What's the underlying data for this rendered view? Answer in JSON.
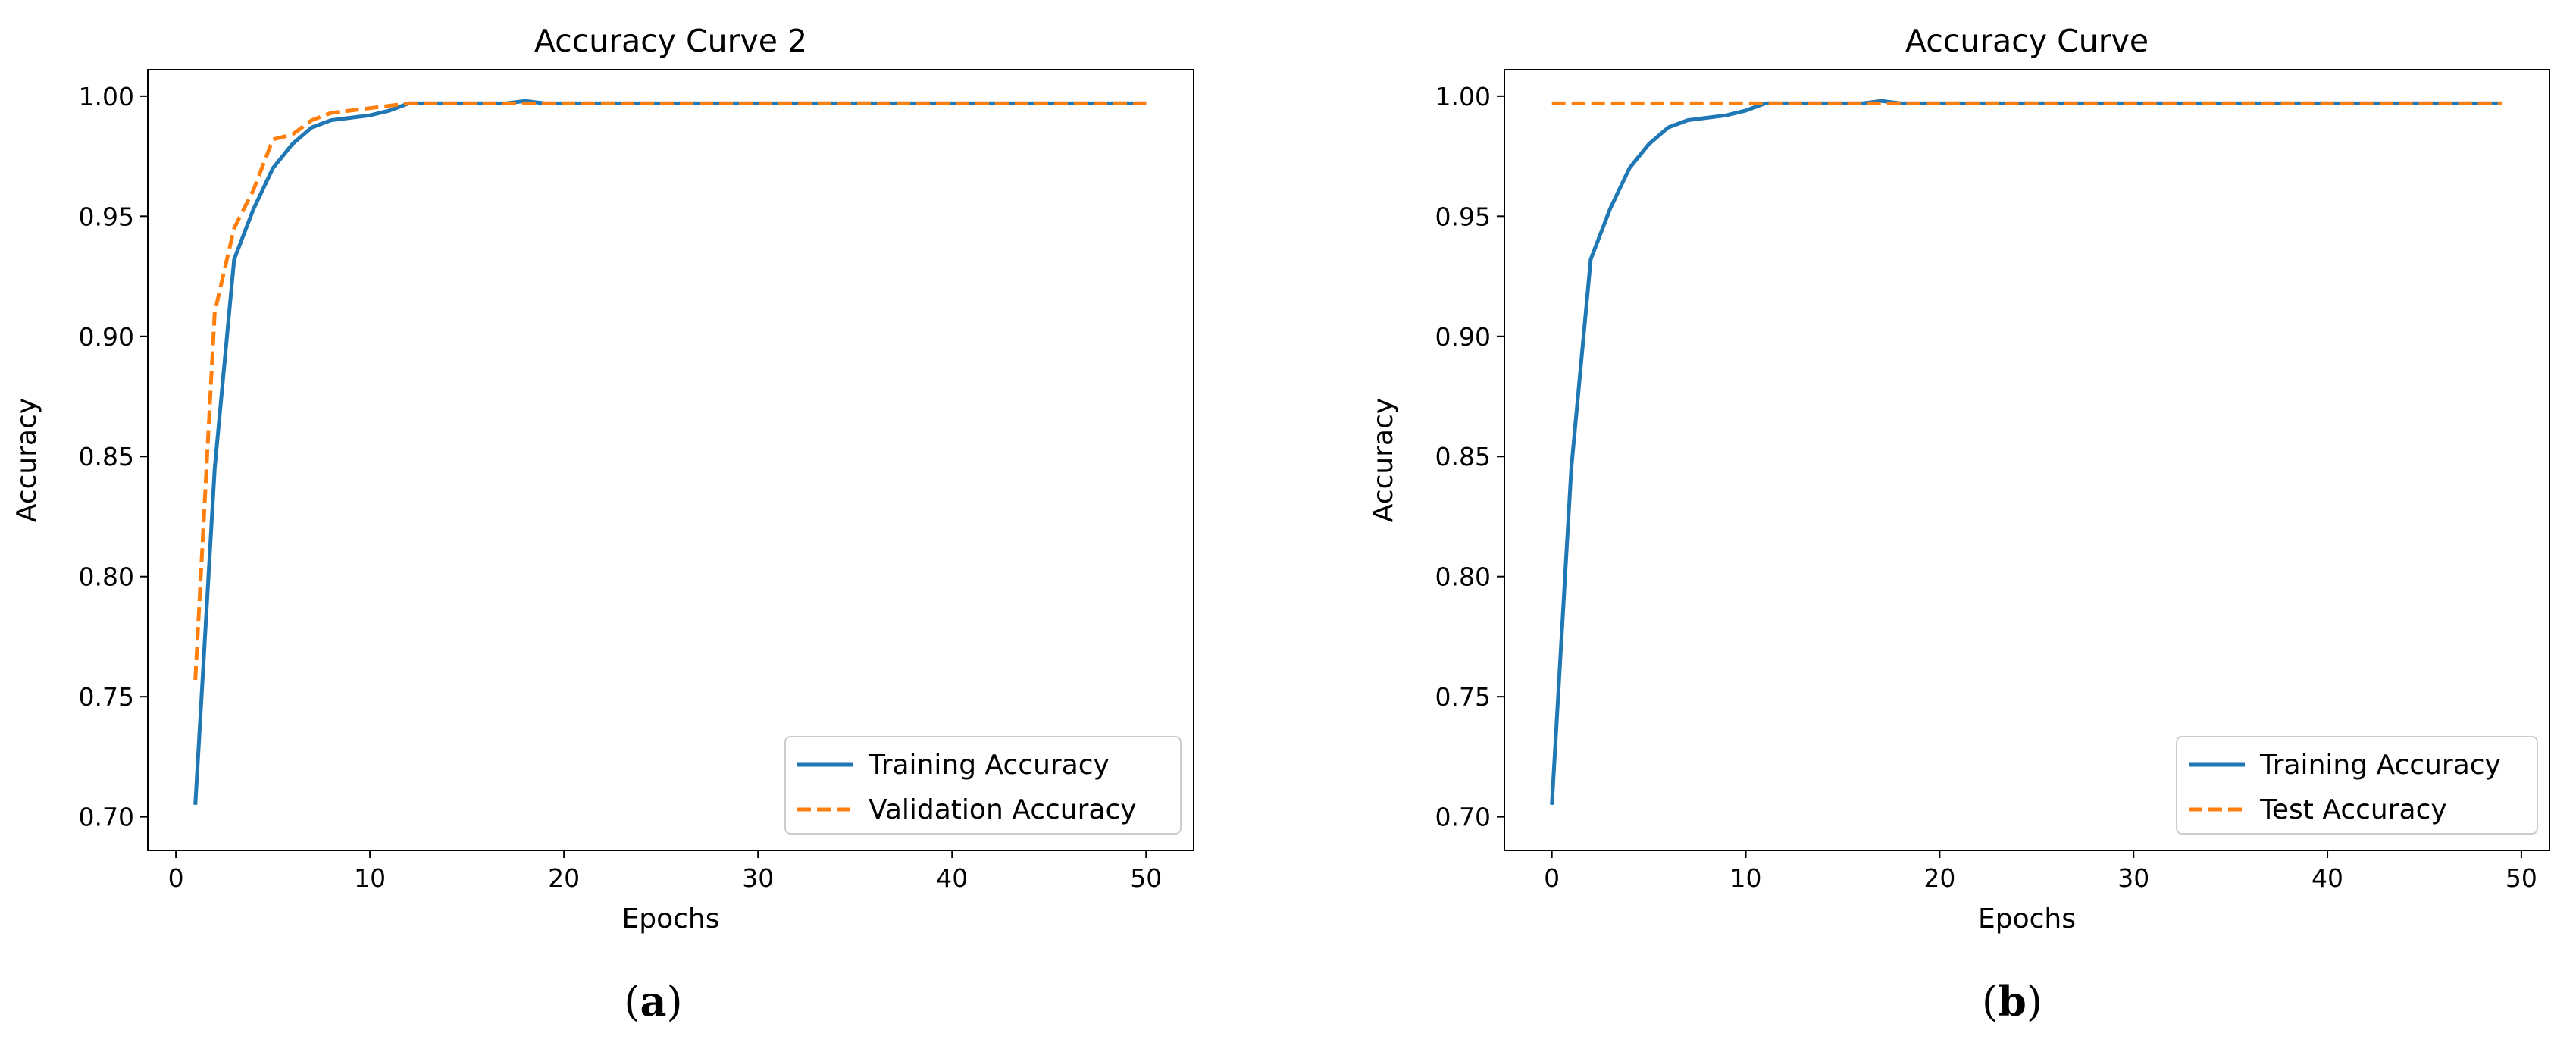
{
  "figure": {
    "panels": [
      {
        "caption_letter": "a",
        "title": "Accuracy Curve 2",
        "xlabel": "Epochs",
        "ylabel": "Accuracy",
        "xticks": [
          0,
          10,
          20,
          30,
          40,
          50
        ],
        "yticks": [
          "0.70",
          "0.75",
          "0.80",
          "0.85",
          "0.90",
          "0.95",
          "1.00"
        ],
        "legend": {
          "placement": "lower-right",
          "entries": [
            "Training Accuracy",
            "Validation Accuracy"
          ]
        }
      },
      {
        "caption_letter": "b",
        "title": "Accuracy Curve",
        "xlabel": "Epochs",
        "ylabel": "Accuracy",
        "xticks": [
          0,
          10,
          20,
          30,
          40,
          50
        ],
        "yticks": [
          "0.70",
          "0.75",
          "0.80",
          "0.85",
          "0.90",
          "0.95",
          "1.00"
        ],
        "legend": {
          "placement": "lower-right",
          "entries": [
            "Training Accuracy",
            "Test Accuracy"
          ]
        }
      }
    ]
  },
  "colors": {
    "training": "#1f77b4",
    "validation": "#ff7f0e",
    "axes": "#000000"
  },
  "chart_data": [
    {
      "type": "line",
      "title": "Accuracy Curve 2",
      "xlabel": "Epochs",
      "ylabel": "Accuracy",
      "xlim": [
        -1.45,
        52.45
      ],
      "ylim": [
        0.686,
        1.011
      ],
      "grid": false,
      "legend_placement": "lower-right",
      "series": [
        {
          "name": "Training Accuracy",
          "style": "solid",
          "x": [
            1,
            2,
            3,
            4,
            5,
            6,
            7,
            8,
            9,
            10,
            11,
            12,
            13,
            14,
            15,
            16,
            17,
            18,
            19,
            20,
            21,
            22,
            23,
            24,
            25,
            26,
            27,
            28,
            29,
            30,
            31,
            32,
            33,
            34,
            35,
            36,
            37,
            38,
            39,
            40,
            41,
            42,
            43,
            44,
            45,
            46,
            47,
            48,
            49,
            50
          ],
          "values": [
            0.705,
            0.845,
            0.932,
            0.953,
            0.97,
            0.98,
            0.987,
            0.99,
            0.991,
            0.992,
            0.994,
            0.997,
            0.997,
            0.997,
            0.997,
            0.997,
            0.997,
            0.998,
            0.997,
            0.997,
            0.997,
            0.997,
            0.997,
            0.997,
            0.997,
            0.997,
            0.997,
            0.997,
            0.997,
            0.997,
            0.997,
            0.997,
            0.997,
            0.997,
            0.997,
            0.997,
            0.997,
            0.997,
            0.997,
            0.997,
            0.997,
            0.997,
            0.997,
            0.997,
            0.997,
            0.997,
            0.997,
            0.997,
            0.997,
            0.997
          ]
        },
        {
          "name": "Validation Accuracy",
          "style": "dashed",
          "x": [
            1,
            2,
            3,
            4,
            5,
            6,
            7,
            8,
            9,
            10,
            11,
            12,
            13,
            14,
            15,
            16,
            17,
            18,
            19,
            20,
            21,
            22,
            23,
            24,
            25,
            26,
            27,
            28,
            29,
            30,
            31,
            32,
            33,
            34,
            35,
            36,
            37,
            38,
            39,
            40,
            41,
            42,
            43,
            44,
            45,
            46,
            47,
            48,
            49,
            50
          ],
          "values": [
            0.757,
            0.91,
            0.945,
            0.961,
            0.982,
            0.984,
            0.99,
            0.993,
            0.994,
            0.995,
            0.996,
            0.997,
            0.997,
            0.997,
            0.997,
            0.997,
            0.997,
            0.997,
            0.997,
            0.997,
            0.997,
            0.997,
            0.997,
            0.997,
            0.997,
            0.997,
            0.997,
            0.997,
            0.997,
            0.997,
            0.997,
            0.997,
            0.997,
            0.997,
            0.997,
            0.997,
            0.997,
            0.997,
            0.997,
            0.997,
            0.997,
            0.997,
            0.997,
            0.997,
            0.997,
            0.997,
            0.997,
            0.997,
            0.997,
            0.997
          ]
        }
      ]
    },
    {
      "type": "line",
      "title": "Accuracy Curve",
      "xlabel": "Epochs",
      "ylabel": "Accuracy",
      "xlim": [
        -2.45,
        51.45
      ],
      "ylim": [
        0.686,
        1.011
      ],
      "grid": false,
      "legend_placement": "lower-right",
      "series": [
        {
          "name": "Training Accuracy",
          "style": "solid",
          "x": [
            0,
            1,
            2,
            3,
            4,
            5,
            6,
            7,
            8,
            9,
            10,
            11,
            12,
            13,
            14,
            15,
            16,
            17,
            18,
            19,
            20,
            21,
            22,
            23,
            24,
            25,
            26,
            27,
            28,
            29,
            30,
            31,
            32,
            33,
            34,
            35,
            36,
            37,
            38,
            39,
            40,
            41,
            42,
            43,
            44,
            45,
            46,
            47,
            48,
            49
          ],
          "values": [
            0.705,
            0.845,
            0.932,
            0.953,
            0.97,
            0.98,
            0.987,
            0.99,
            0.991,
            0.992,
            0.994,
            0.997,
            0.997,
            0.997,
            0.997,
            0.997,
            0.997,
            0.998,
            0.997,
            0.997,
            0.997,
            0.997,
            0.997,
            0.997,
            0.997,
            0.997,
            0.997,
            0.997,
            0.997,
            0.997,
            0.997,
            0.997,
            0.997,
            0.997,
            0.997,
            0.997,
            0.997,
            0.997,
            0.997,
            0.997,
            0.997,
            0.997,
            0.997,
            0.997,
            0.997,
            0.997,
            0.997,
            0.997,
            0.997,
            0.997
          ]
        },
        {
          "name": "Test Accuracy",
          "style": "dashed",
          "x": [
            0,
            49
          ],
          "values": [
            0.997,
            0.997
          ]
        }
      ]
    }
  ]
}
